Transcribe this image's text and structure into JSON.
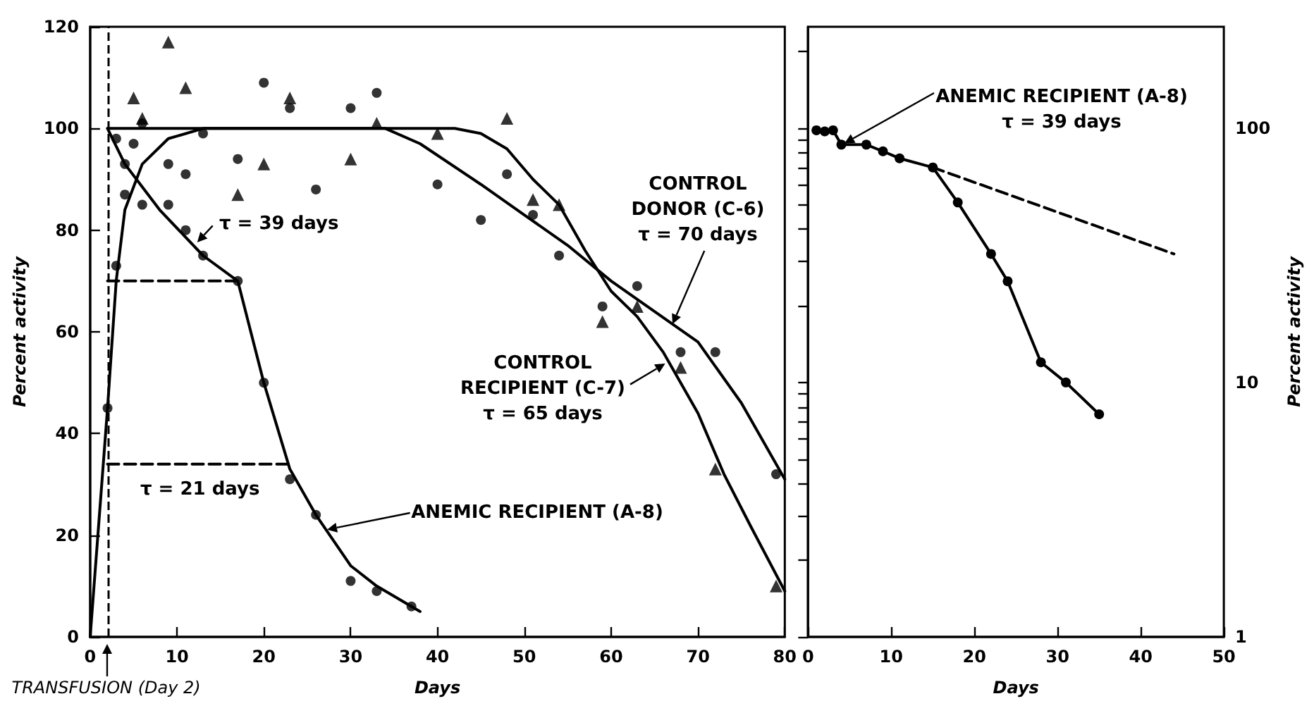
{
  "chart_data": [
    {
      "type": "scatter",
      "xlabel": "Days",
      "ylabel": "Percent activity",
      "xlim": [
        0,
        80
      ],
      "ylim": [
        0,
        120
      ],
      "xticks": [
        0,
        10,
        20,
        30,
        40,
        50,
        60,
        70,
        80
      ],
      "yticks": [
        0,
        20,
        40,
        60,
        80,
        100,
        120
      ],
      "series": [
        {
          "type": "line",
          "color": "#000000",
          "marker": "none",
          "x": [
            2,
            4,
            8,
            13,
            17,
            20,
            23,
            26,
            30,
            33,
            38
          ],
          "values": [
            100,
            93,
            84,
            75,
            70,
            50,
            33,
            24,
            14,
            10,
            5
          ]
        },
        {
          "type": "line",
          "color": "#000000",
          "marker": "none",
          "x": [
            0,
            2,
            3,
            4,
            6,
            9,
            13,
            34,
            38,
            45,
            50,
            55,
            60,
            65,
            70,
            75,
            80
          ],
          "values": [
            0,
            45,
            70,
            84,
            93,
            98,
            100,
            100,
            97,
            89,
            83,
            77,
            70,
            64,
            58,
            46,
            31
          ]
        },
        {
          "type": "line",
          "color": "#000000",
          "marker": "none",
          "x": [
            2,
            42,
            45,
            48,
            51,
            54,
            57,
            60,
            63,
            66,
            70,
            73,
            76,
            80
          ],
          "values": [
            100,
            100,
            99,
            96,
            90,
            85,
            76,
            68,
            63,
            56,
            44,
            32,
            22,
            9
          ]
        },
        {
          "type": "line",
          "color": "#000000",
          "marker": "none",
          "line_style": "dashed",
          "x": [
            2,
            17
          ],
          "values": [
            70,
            70
          ]
        },
        {
          "type": "line",
          "color": "#000000",
          "marker": "none",
          "line_style": "dashed",
          "x": [
            2,
            23
          ],
          "values": [
            34,
            34
          ]
        },
        {
          "color": "#000000",
          "marker": "circle",
          "x": [
            3,
            4,
            5,
            6,
            9,
            11,
            13,
            17,
            20,
            23,
            26,
            30,
            33,
            37
          ],
          "values": [
            98,
            93,
            97,
            85,
            85,
            80,
            75,
            70,
            50,
            31,
            24,
            11,
            9,
            6
          ]
        },
        {
          "color": "#000000",
          "marker": "circle",
          "x": [
            2,
            3,
            4,
            6,
            9,
            11,
            13,
            17,
            20,
            23,
            26,
            30,
            33,
            40,
            45,
            48,
            51,
            54,
            59,
            63,
            68,
            72,
            79
          ],
          "values": [
            45,
            73,
            87,
            101,
            93,
            91,
            99,
            94,
            109,
            104,
            88,
            104,
            107,
            89,
            82,
            91,
            83,
            75,
            65,
            69,
            56,
            56,
            32
          ]
        },
        {
          "color": "#000000",
          "marker": "triangle",
          "x": [
            5,
            6,
            9,
            11,
            17,
            20,
            23,
            30,
            33,
            40,
            48,
            51,
            54,
            59,
            63,
            68,
            72,
            79
          ],
          "values": [
            106,
            102,
            117,
            108,
            87,
            93,
            106,
            94,
            101,
            99,
            102,
            86,
            85,
            62,
            65,
            53,
            33,
            10
          ]
        }
      ],
      "ref_lines": [
        {
          "axis": "x",
          "value": 2,
          "label": "TRANSFUSION (Day 2)",
          "line_style": "dashed"
        }
      ],
      "annotations": [
        {
          "text": "τ = 39 days",
          "x": 12,
          "y": 77
        },
        {
          "text": "τ = 21 days",
          "x": 12,
          "y": 34
        },
        {
          "text": "CONTROL\nDONOR (C-6)\nτ = 70 days",
          "x": 67,
          "y": 61
        },
        {
          "text": "CONTROL\nRECIPIENT (C-7)\nτ = 65 days",
          "x": 66.5,
          "y": 54
        },
        {
          "text": "ANEMIC RECIPIENT (A-8)",
          "x": 27,
          "y": 21
        }
      ]
    },
    {
      "type": "line",
      "xlabel": "Days",
      "ylabel": "Percent activity",
      "log": "y",
      "xlim": [
        0,
        50
      ],
      "ylim": [
        1,
        250
      ],
      "xticks": [
        0,
        10,
        20,
        30,
        40,
        50
      ],
      "yticks": [
        1,
        {
          "value": 2,
          "label": null
        },
        {
          "value": 3,
          "label": null
        },
        {
          "value": 4,
          "label": null
        },
        {
          "value": 5,
          "label": null
        },
        {
          "value": 6,
          "label": null
        },
        {
          "value": 7,
          "label": null
        },
        {
          "value": 8,
          "label": null
        },
        {
          "value": 9,
          "label": null
        },
        10,
        {
          "value": 20,
          "label": null
        },
        {
          "value": 30,
          "label": null
        },
        {
          "value": 40,
          "label": null
        },
        {
          "value": 50,
          "label": null
        },
        {
          "value": 60,
          "label": null
        },
        {
          "value": 70,
          "label": null
        },
        {
          "value": 80,
          "label": null
        },
        {
          "value": 90,
          "label": null
        },
        100,
        {
          "value": 200,
          "label": null
        }
      ],
      "series": [
        {
          "color": "#000000",
          "marker": "circle",
          "x": [
            1,
            2,
            3,
            4,
            7,
            9,
            11,
            15,
            18,
            22,
            24,
            28,
            31,
            35
          ],
          "values": [
            98,
            97,
            98,
            86,
            86,
            81,
            76,
            70,
            51,
            32,
            25,
            12,
            10,
            7.5
          ]
        },
        {
          "color": "#000000",
          "marker": "none",
          "line_style": "dashed",
          "x": [
            15,
            44
          ],
          "values": [
            70,
            32
          ]
        }
      ],
      "annotations": [
        {
          "text": "ANEMIC RECIPIENT (A-8)\nτ = 39 days",
          "x": 4,
          "y": 86
        }
      ]
    }
  ]
}
